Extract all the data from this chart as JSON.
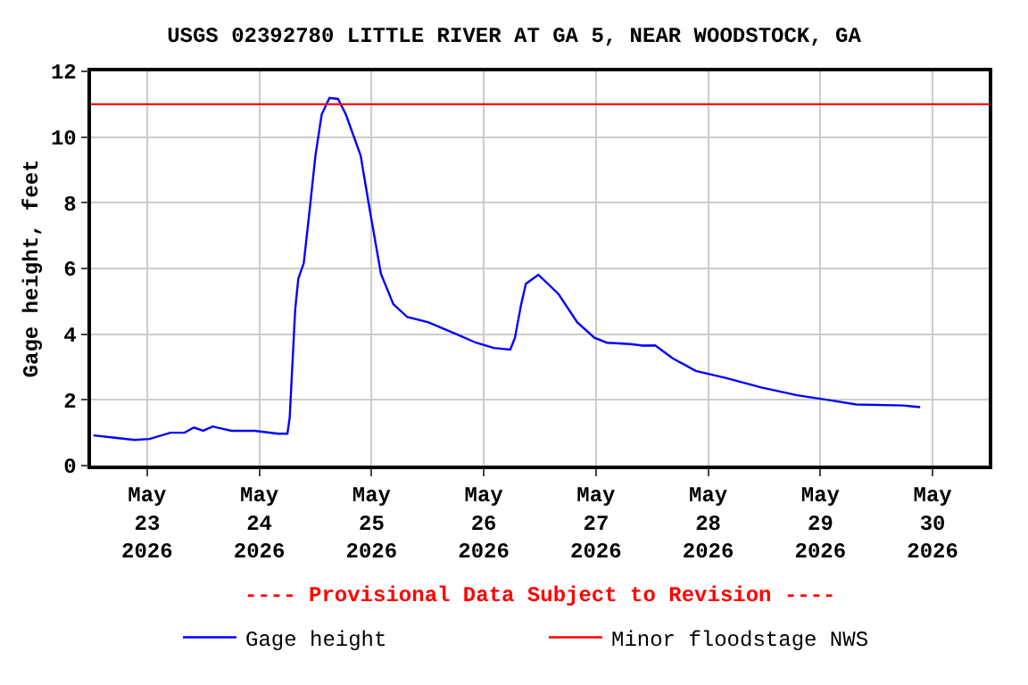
{
  "chart_data": {
    "type": "line",
    "title": "USGS 02392780 LITTLE RIVER AT GA 5, NEAR WOODSTOCK, GA",
    "ylabel": "Gage height, feet",
    "x": [
      "2026-05-22T12:30",
      "2026-05-22T17:30",
      "2026-05-22T21:20",
      "2026-05-23T00:30",
      "2026-05-23T05:00",
      "2026-05-23T08:00",
      "2026-05-23T10:00",
      "2026-05-23T12:00",
      "2026-05-23T14:00",
      "2026-05-23T18:00",
      "2026-05-23T23:00",
      "2026-05-24T04:00",
      "2026-05-24T06:00",
      "2026-05-24T06:30",
      "2026-05-24T07:00",
      "2026-05-24T07:40",
      "2026-05-24T08:20",
      "2026-05-24T09:30",
      "2026-05-24T10:50",
      "2026-05-24T12:00",
      "2026-05-24T13:20",
      "2026-05-24T15:00",
      "2026-05-24T16:50",
      "2026-05-24T18:30",
      "2026-05-24T21:40",
      "2026-05-24T23:30",
      "2026-05-25T02:00",
      "2026-05-25T04:40",
      "2026-05-25T07:40",
      "2026-05-25T12:10",
      "2026-05-25T17:20",
      "2026-05-25T22:20",
      "2026-05-26T02:10",
      "2026-05-26T05:40",
      "2026-05-26T06:40",
      "2026-05-26T08:00",
      "2026-05-26T09:00",
      "2026-05-26T11:40",
      "2026-05-26T16:00",
      "2026-05-26T20:00",
      "2026-05-26T23:40",
      "2026-05-27T02:20",
      "2026-05-27T07:20",
      "2026-05-27T10:00",
      "2026-05-27T12:40",
      "2026-05-27T16:20",
      "2026-05-27T21:20",
      "2026-05-28T03:40",
      "2026-05-28T11:20",
      "2026-05-28T19:00",
      "2026-05-29T02:30",
      "2026-05-29T07:40",
      "2026-05-29T17:50",
      "2026-05-29T21:20"
    ],
    "series": [
      {
        "name": "Gage height",
        "color": "#0000ff",
        "values": [
          0.92,
          0.84,
          0.78,
          0.81,
          1.0,
          1.0,
          1.16,
          1.06,
          1.19,
          1.06,
          1.06,
          0.97,
          0.97,
          1.47,
          2.88,
          4.75,
          5.69,
          6.16,
          7.88,
          9.44,
          10.69,
          11.19,
          11.16,
          10.69,
          9.44,
          7.88,
          5.84,
          4.91,
          4.52,
          4.36,
          4.05,
          3.74,
          3.58,
          3.53,
          3.89,
          4.91,
          5.53,
          5.81,
          5.22,
          4.36,
          3.89,
          3.74,
          3.7,
          3.65,
          3.66,
          3.27,
          2.88,
          2.67,
          2.38,
          2.14,
          1.98,
          1.86,
          1.83,
          1.78
        ]
      }
    ],
    "ref_lines": [
      {
        "axis": "y",
        "value": 11,
        "label": "Minor floodstage NWS",
        "color": "#ff0000"
      }
    ],
    "annotations": [
      "---- Provisional Data Subject to Revision ----"
    ],
    "xlim": [
      "2026-05-22T12:00",
      "2026-05-30T12:00"
    ],
    "xticks": [
      {
        "value": "2026-05-23",
        "label": "May\n23\n2026"
      },
      {
        "value": "2026-05-24",
        "label": "May\n24\n2026"
      },
      {
        "value": "2026-05-25",
        "label": "May\n25\n2026"
      },
      {
        "value": "2026-05-26",
        "label": "May\n26\n2026"
      },
      {
        "value": "2026-05-27",
        "label": "May\n27\n2026"
      },
      {
        "value": "2026-05-28",
        "label": "May\n28\n2026"
      },
      {
        "value": "2026-05-29",
        "label": "May\n29\n2026"
      },
      {
        "value": "2026-05-30",
        "label": "May\n30\n2026"
      }
    ],
    "ylim": [
      0,
      12
    ],
    "yticks": [
      0,
      2,
      4,
      6,
      8,
      10,
      12
    ],
    "grid": true,
    "legend": "bottom",
    "line_style": "solid",
    "marker": "none"
  }
}
